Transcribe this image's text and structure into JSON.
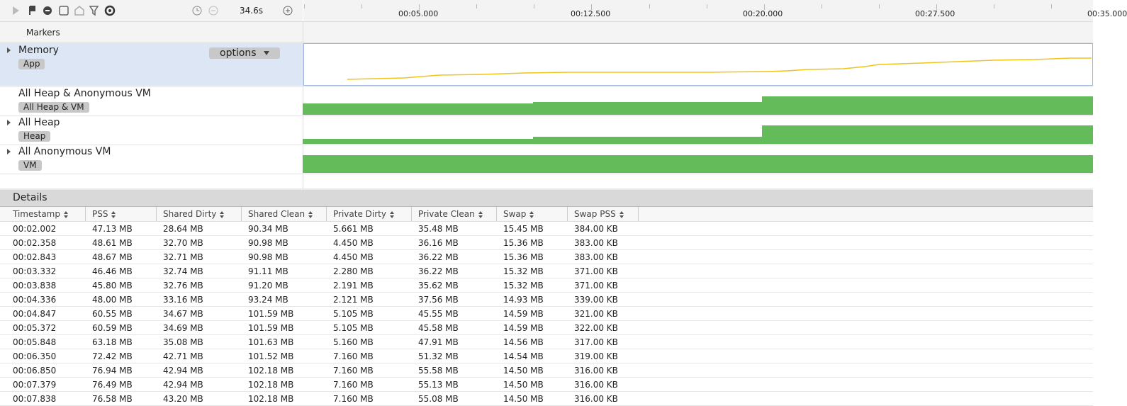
{
  "toolbar": {
    "duration": "34.6s"
  },
  "timeline": {
    "ticks": [
      "00:05.000",
      "00:12.500",
      "00:20.000",
      "00:27.500",
      "00:35.000"
    ]
  },
  "markers_label": "Markers",
  "tracks": [
    {
      "title": "Memory",
      "tag": "App",
      "button": "options"
    },
    {
      "title": "All Heap & Anonymous VM",
      "tag": "All Heap & VM"
    },
    {
      "title": "All Heap",
      "tag": "Heap"
    },
    {
      "title": "All Anonymous VM",
      "tag": "VM"
    }
  ],
  "details": {
    "title": "Details",
    "columns": [
      "Timestamp",
      "PSS",
      "Shared Dirty",
      "Shared Clean",
      "Private Dirty",
      "Private Clean",
      "Swap",
      "Swap PSS"
    ],
    "rows": [
      [
        "00:02.002",
        "47.13 MB",
        "28.64 MB",
        "90.34 MB",
        "5.661 MB",
        "35.48 MB",
        "15.45 MB",
        "384.00 KB"
      ],
      [
        "00:02.358",
        "48.61 MB",
        "32.70 MB",
        "90.98 MB",
        "4.450 MB",
        "36.16 MB",
        "15.36 MB",
        "383.00 KB"
      ],
      [
        "00:02.843",
        "48.67 MB",
        "32.71 MB",
        "90.98 MB",
        "4.450 MB",
        "36.22 MB",
        "15.36 MB",
        "383.00 KB"
      ],
      [
        "00:03.332",
        "46.46 MB",
        "32.74 MB",
        "91.11 MB",
        "2.280 MB",
        "36.22 MB",
        "15.32 MB",
        "371.00 KB"
      ],
      [
        "00:03.838",
        "45.80 MB",
        "32.76 MB",
        "91.20 MB",
        "2.191 MB",
        "35.62 MB",
        "15.32 MB",
        "371.00 KB"
      ],
      [
        "00:04.336",
        "48.00 MB",
        "33.16 MB",
        "93.24 MB",
        "2.121 MB",
        "37.56 MB",
        "14.93 MB",
        "339.00 KB"
      ],
      [
        "00:04.847",
        "60.55 MB",
        "34.67 MB",
        "101.59 MB",
        "5.105 MB",
        "45.55 MB",
        "14.59 MB",
        "321.00 KB"
      ],
      [
        "00:05.372",
        "60.59 MB",
        "34.69 MB",
        "101.59 MB",
        "5.105 MB",
        "45.58 MB",
        "14.59 MB",
        "322.00 KB"
      ],
      [
        "00:05.848",
        "63.18 MB",
        "35.08 MB",
        "101.63 MB",
        "5.160 MB",
        "47.91 MB",
        "14.56 MB",
        "317.00 KB"
      ],
      [
        "00:06.350",
        "72.42 MB",
        "42.71 MB",
        "101.52 MB",
        "7.160 MB",
        "51.32 MB",
        "14.54 MB",
        "319.00 KB"
      ],
      [
        "00:06.850",
        "76.94 MB",
        "42.94 MB",
        "102.18 MB",
        "7.160 MB",
        "55.58 MB",
        "14.50 MB",
        "316.00 KB"
      ],
      [
        "00:07.379",
        "76.49 MB",
        "42.94 MB",
        "102.18 MB",
        "7.160 MB",
        "55.13 MB",
        "14.50 MB",
        "316.00 KB"
      ],
      [
        "00:07.838",
        "76.58 MB",
        "43.20 MB",
        "102.18 MB",
        "7.160 MB",
        "55.08 MB",
        "14.50 MB",
        "316.00 KB"
      ]
    ]
  }
}
